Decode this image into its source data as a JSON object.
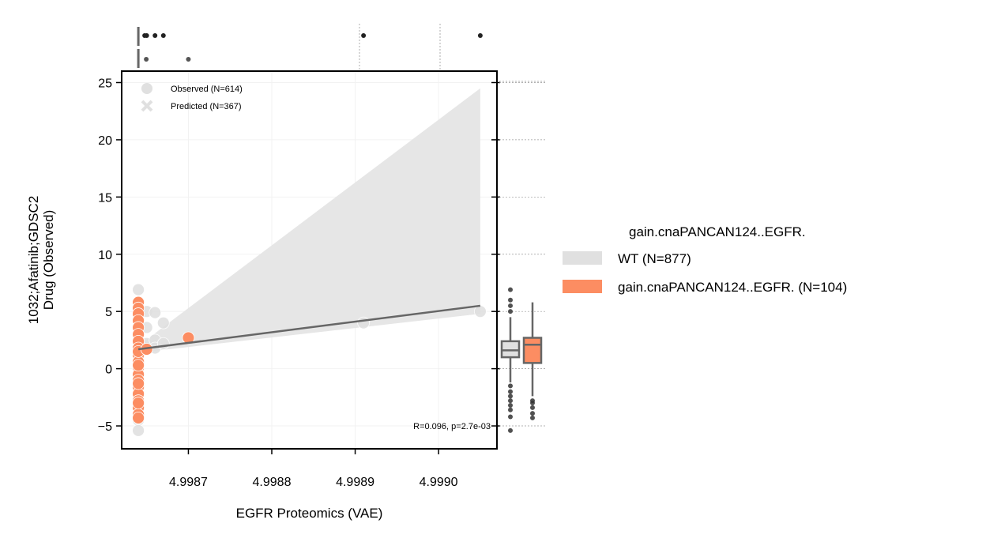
{
  "chart_data": {
    "type": "scatter",
    "xlabel": "EGFR Proteomics (VAE)",
    "ylabel_line1": "1032;Afatinib;GDSC2",
    "ylabel_line2": "Drug (Observed)",
    "xlim": [
      4.99862,
      4.99907
    ],
    "ylim": [
      -7,
      26
    ],
    "xticks": [
      4.9987,
      4.9988,
      4.9989,
      4.999
    ],
    "xtick_labels": [
      "4.9987",
      "4.9988",
      "4.9989",
      "4.9990"
    ],
    "yticks": [
      -5,
      0,
      5,
      10,
      15,
      20,
      25
    ],
    "ytick_labels": [
      "−5",
      "0",
      "5",
      "10",
      "15",
      "20",
      "25"
    ],
    "annotation": "R=0.096, p=2.7e-03",
    "marker_legend": [
      {
        "label": "Observed (N=614)",
        "marker": "circle"
      },
      {
        "label": "Predicted (N=367)",
        "marker": "x"
      }
    ],
    "hue_legend": {
      "title": "gain.cnaPANCAN124..EGFR.",
      "entries": [
        {
          "label": "WT (N=877)",
          "color": "#e0e0e0"
        },
        {
          "label": "gain.cnaPANCAN124..EGFR. (N=104)",
          "color": "#fc8d62"
        }
      ]
    },
    "colors": {
      "wt": "#e0e0e0",
      "gain": "#fc8d62",
      "line": "#666666",
      "band": "#e6e6e6"
    },
    "regression": {
      "x": [
        4.99864,
        4.99905
      ],
      "y": [
        1.7,
        5.5
      ]
    },
    "ci_band": {
      "x": [
        4.99864,
        4.99905
      ],
      "upper": [
        2.0,
        24.5
      ],
      "lower": [
        1.4,
        4.8
      ]
    },
    "series": [
      {
        "name": "WT (N=877)",
        "x": [
          4.99864,
          4.99864,
          4.99864,
          4.99864,
          4.99864,
          4.99864,
          4.99864,
          4.99864,
          4.99864,
          4.99864,
          4.99865,
          4.99865,
          4.99865,
          4.99866,
          4.99866,
          4.99866,
          4.99867,
          4.99867,
          4.99891,
          4.99905
        ],
        "y": [
          6.9,
          4.2,
          3.0,
          1.5,
          0.2,
          -1.0,
          -2.3,
          -3.5,
          -4.5,
          -5.4,
          5.0,
          3.6,
          2.2,
          4.9,
          2.5,
          1.8,
          4.0,
          2.2,
          4.0,
          5.0
        ]
      },
      {
        "name": "gain.cnaPANCAN124..EGFR. (N=104)",
        "x": [
          4.99864,
          4.99864,
          4.99864,
          4.99864,
          4.99864,
          4.99864,
          4.99864,
          4.99864,
          4.99864,
          4.99864,
          4.99864,
          4.99864,
          4.99864,
          4.99864,
          4.99864,
          4.99864,
          4.99864,
          4.99864,
          4.99864,
          4.99864,
          4.99864,
          4.99864,
          4.99864,
          4.99865,
          4.9987
        ],
        "y": [
          5.8,
          5.3,
          4.8,
          4.2,
          3.6,
          3.0,
          2.4,
          1.8,
          1.2,
          0.6,
          0.1,
          -0.5,
          -1.0,
          -1.6,
          -2.2,
          -2.8,
          -3.4,
          -4.0,
          -4.3,
          0.3,
          -1.3,
          1.5,
          -3.0,
          1.7,
          2.7
        ]
      }
    ],
    "top_marginal": {
      "gain_x": [
        4.99864,
        4.9987
      ],
      "wt_x": [
        4.99864,
        4.99865,
        4.99866,
        4.99867,
        4.99891,
        4.99905
      ]
    },
    "right_boxplots": [
      {
        "name": "WT",
        "q1": 1.0,
        "median": 1.6,
        "q3": 2.4,
        "whisker_low": -1.2,
        "whisker_high": 4.5,
        "outliers": [
          6.9,
          6.0,
          5.5,
          5.0,
          -1.5,
          -2.0,
          -2.4,
          -2.8,
          -3.2,
          -3.6,
          -4.2,
          -5.4
        ]
      },
      {
        "name": "gain.cnaPANCAN124..EGFR.",
        "q1": 0.5,
        "median": 2.1,
        "q3": 2.7,
        "whisker_low": -2.4,
        "whisker_high": 5.8,
        "outliers": [
          -2.8,
          -3.0,
          -3.4,
          -3.9,
          -4.3
        ]
      }
    ]
  }
}
